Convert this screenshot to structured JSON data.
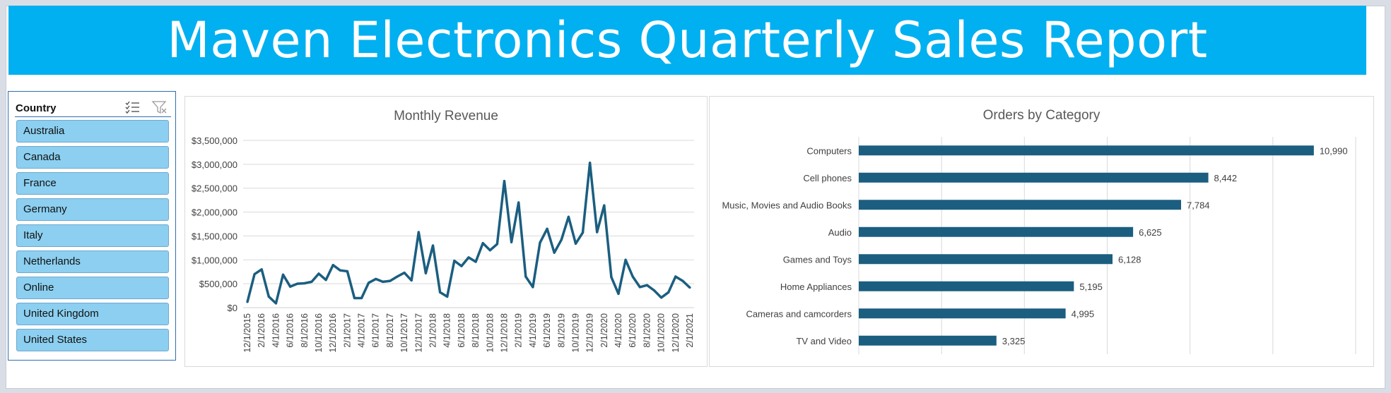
{
  "report": {
    "title": "Maven Electronics Quarterly Sales Report"
  },
  "colors": {
    "banner": "#00b0f0",
    "series": "#1b5e80",
    "slicer_item": "#8ccff0"
  },
  "slicer": {
    "title": "Country",
    "multi_select_icon": "multi-select-icon",
    "clear_filter_icon": "clear-filter-icon",
    "items": [
      "Australia",
      "Canada",
      "France",
      "Germany",
      "Italy",
      "Netherlands",
      "Online",
      "United Kingdom",
      "United States"
    ]
  },
  "chart_data": [
    {
      "type": "line",
      "title": "Monthly Revenue",
      "xlabel": "",
      "ylabel": "",
      "ylim": [
        0,
        3500000
      ],
      "yticks": [
        "$0",
        "$500,000",
        "$1,000,000",
        "$1,500,000",
        "$2,000,000",
        "$2,500,000",
        "$3,000,000",
        "$3,500,000"
      ],
      "xticks": [
        "12/1/2015",
        "2/1/2016",
        "4/1/2016",
        "6/1/2016",
        "8/1/2016",
        "10/1/2016",
        "12/1/2016",
        "2/1/2017",
        "4/1/2017",
        "6/1/2017",
        "8/1/2017",
        "10/1/2017",
        "12/1/2017",
        "2/1/2018",
        "4/1/2018",
        "6/1/2018",
        "8/1/2018",
        "10/1/2018",
        "12/1/2018",
        "2/1/2019",
        "4/1/2019",
        "6/1/2019",
        "8/1/2019",
        "10/1/2019",
        "12/1/2019",
        "2/1/2020",
        "4/1/2020",
        "6/1/2020",
        "8/1/2020",
        "10/1/2020",
        "12/1/2020",
        "2/1/2021"
      ],
      "grid": true,
      "legend": "none",
      "series": [
        {
          "values": [
            120000,
            700000,
            800000,
            230000,
            90000,
            690000,
            440000,
            500000,
            510000,
            540000,
            710000,
            580000,
            890000,
            780000,
            760000,
            200000,
            200000,
            520000,
            600000,
            540000,
            560000,
            650000,
            730000,
            570000,
            1580000,
            720000,
            1300000,
            320000,
            230000,
            980000,
            870000,
            1050000,
            960000,
            1350000,
            1200000,
            1330000,
            2650000,
            1370000,
            2200000,
            650000,
            430000,
            1360000,
            1650000,
            1150000,
            1420000,
            1900000,
            1340000,
            1570000,
            3030000,
            1580000,
            2140000,
            640000,
            290000,
            1000000,
            650000,
            430000,
            470000,
            360000,
            210000,
            320000,
            650000,
            560000,
            420000
          ]
        }
      ]
    },
    {
      "type": "bar",
      "orientation": "horizontal",
      "title": "Orders by Category",
      "xlim": [
        0,
        12000
      ],
      "grid": true,
      "legend": "none",
      "categories": [
        "Computers",
        "Cell phones",
        "Music, Movies and Audio Books",
        "Audio",
        "Games and Toys",
        "Home Appliances",
        "Cameras and camcorders",
        "TV and Video"
      ],
      "values": [
        10990,
        8442,
        7784,
        6625,
        6128,
        5195,
        4995,
        3325
      ],
      "value_labels": [
        "10,990",
        "8,442",
        "7,784",
        "6,625",
        "6,128",
        "5,195",
        "4,995",
        "3,325"
      ]
    }
  ]
}
